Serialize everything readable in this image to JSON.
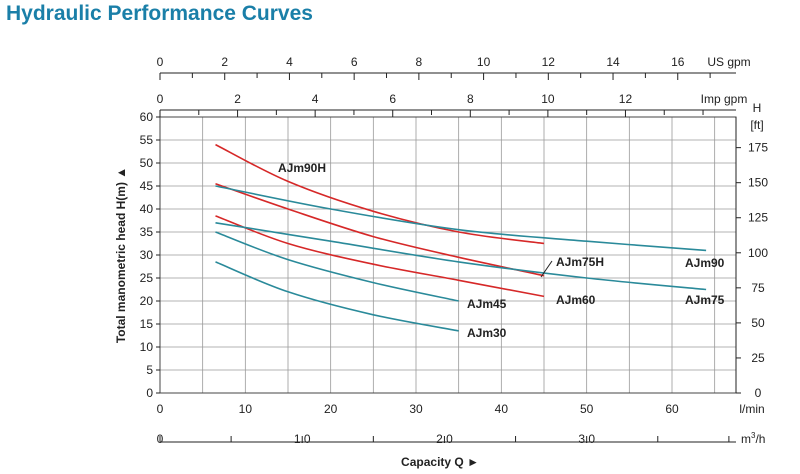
{
  "page": {
    "title": "Hydraulic Performance Curves"
  },
  "colors": {
    "title": "#1a7fa8",
    "teal": "#2a8a9a",
    "red": "#d62828",
    "grid": "#9a9a9a",
    "axis": "#222222"
  },
  "chart_data": {
    "type": "line",
    "title": "",
    "xlabel": "Capacity Q",
    "ylabel": "Total manometric head H(m)",
    "grid": true,
    "axes": {
      "x_lmin": {
        "range": [
          0,
          67.5
        ],
        "ticks": [
          0,
          10,
          20,
          30,
          40,
          50,
          60
        ],
        "unit": "l/min"
      },
      "x_m3h": {
        "range": [
          0,
          4.05
        ],
        "ticks": [
          0,
          1.0,
          2.0,
          3.0
        ],
        "tick_labels": [
          "0",
          "1.0",
          "2.0",
          "3.0"
        ],
        "unit_base": "m",
        "unit_sup": "3",
        "unit_tail": "/h"
      },
      "x_usgpm": {
        "range": [
          0,
          17.8
        ],
        "ticks": [
          0,
          2,
          4,
          6,
          8,
          10,
          12,
          14,
          16
        ],
        "unit": "US gpm"
      },
      "x_impgpm": {
        "range": [
          0,
          14.85
        ],
        "ticks": [
          0,
          2,
          4,
          6,
          8,
          10,
          12
        ],
        "unit": "Imp gpm"
      },
      "y_m": {
        "range": [
          0,
          60
        ],
        "ticks": [
          0,
          5,
          10,
          15,
          20,
          25,
          30,
          35,
          40,
          45,
          50,
          55,
          60
        ],
        "unit": "m"
      },
      "y_ft": {
        "range": [
          0,
          196.85
        ],
        "ticks": [
          0,
          25,
          50,
          75,
          100,
          125,
          150,
          175
        ],
        "label_top": "H",
        "label_unit": "[ft]"
      }
    },
    "series": [
      {
        "name": "AJm90H",
        "color": "red",
        "x": [
          6.5,
          15,
          25,
          35,
          45
        ],
        "y": [
          54,
          46,
          39.5,
          35,
          32.5
        ]
      },
      {
        "name": "AJm75H",
        "color": "red",
        "x": [
          6.5,
          15,
          25,
          35,
          45
        ],
        "y": [
          45.5,
          40,
          34,
          29.5,
          25.5
        ]
      },
      {
        "name": "AJm60",
        "color": "red",
        "x": [
          6.5,
          15,
          25,
          35,
          45
        ],
        "y": [
          38.5,
          32.5,
          28,
          24.5,
          21
        ]
      },
      {
        "name": "AJm90",
        "color": "teal",
        "x": [
          6.5,
          20,
          35,
          50,
          64
        ],
        "y": [
          45,
          40,
          35.5,
          33,
          31
        ]
      },
      {
        "name": "AJm75",
        "color": "teal",
        "x": [
          6.5,
          20,
          35,
          50,
          64
        ],
        "y": [
          37,
          33,
          28.5,
          25,
          22.5
        ]
      },
      {
        "name": "AJm45",
        "color": "teal",
        "x": [
          6.5,
          15,
          25,
          35
        ],
        "y": [
          35,
          29,
          24,
          20
        ]
      },
      {
        "name": "AJm30",
        "color": "teal",
        "x": [
          6.5,
          15,
          25,
          35
        ],
        "y": [
          28.5,
          22,
          17,
          13.5
        ]
      }
    ]
  }
}
